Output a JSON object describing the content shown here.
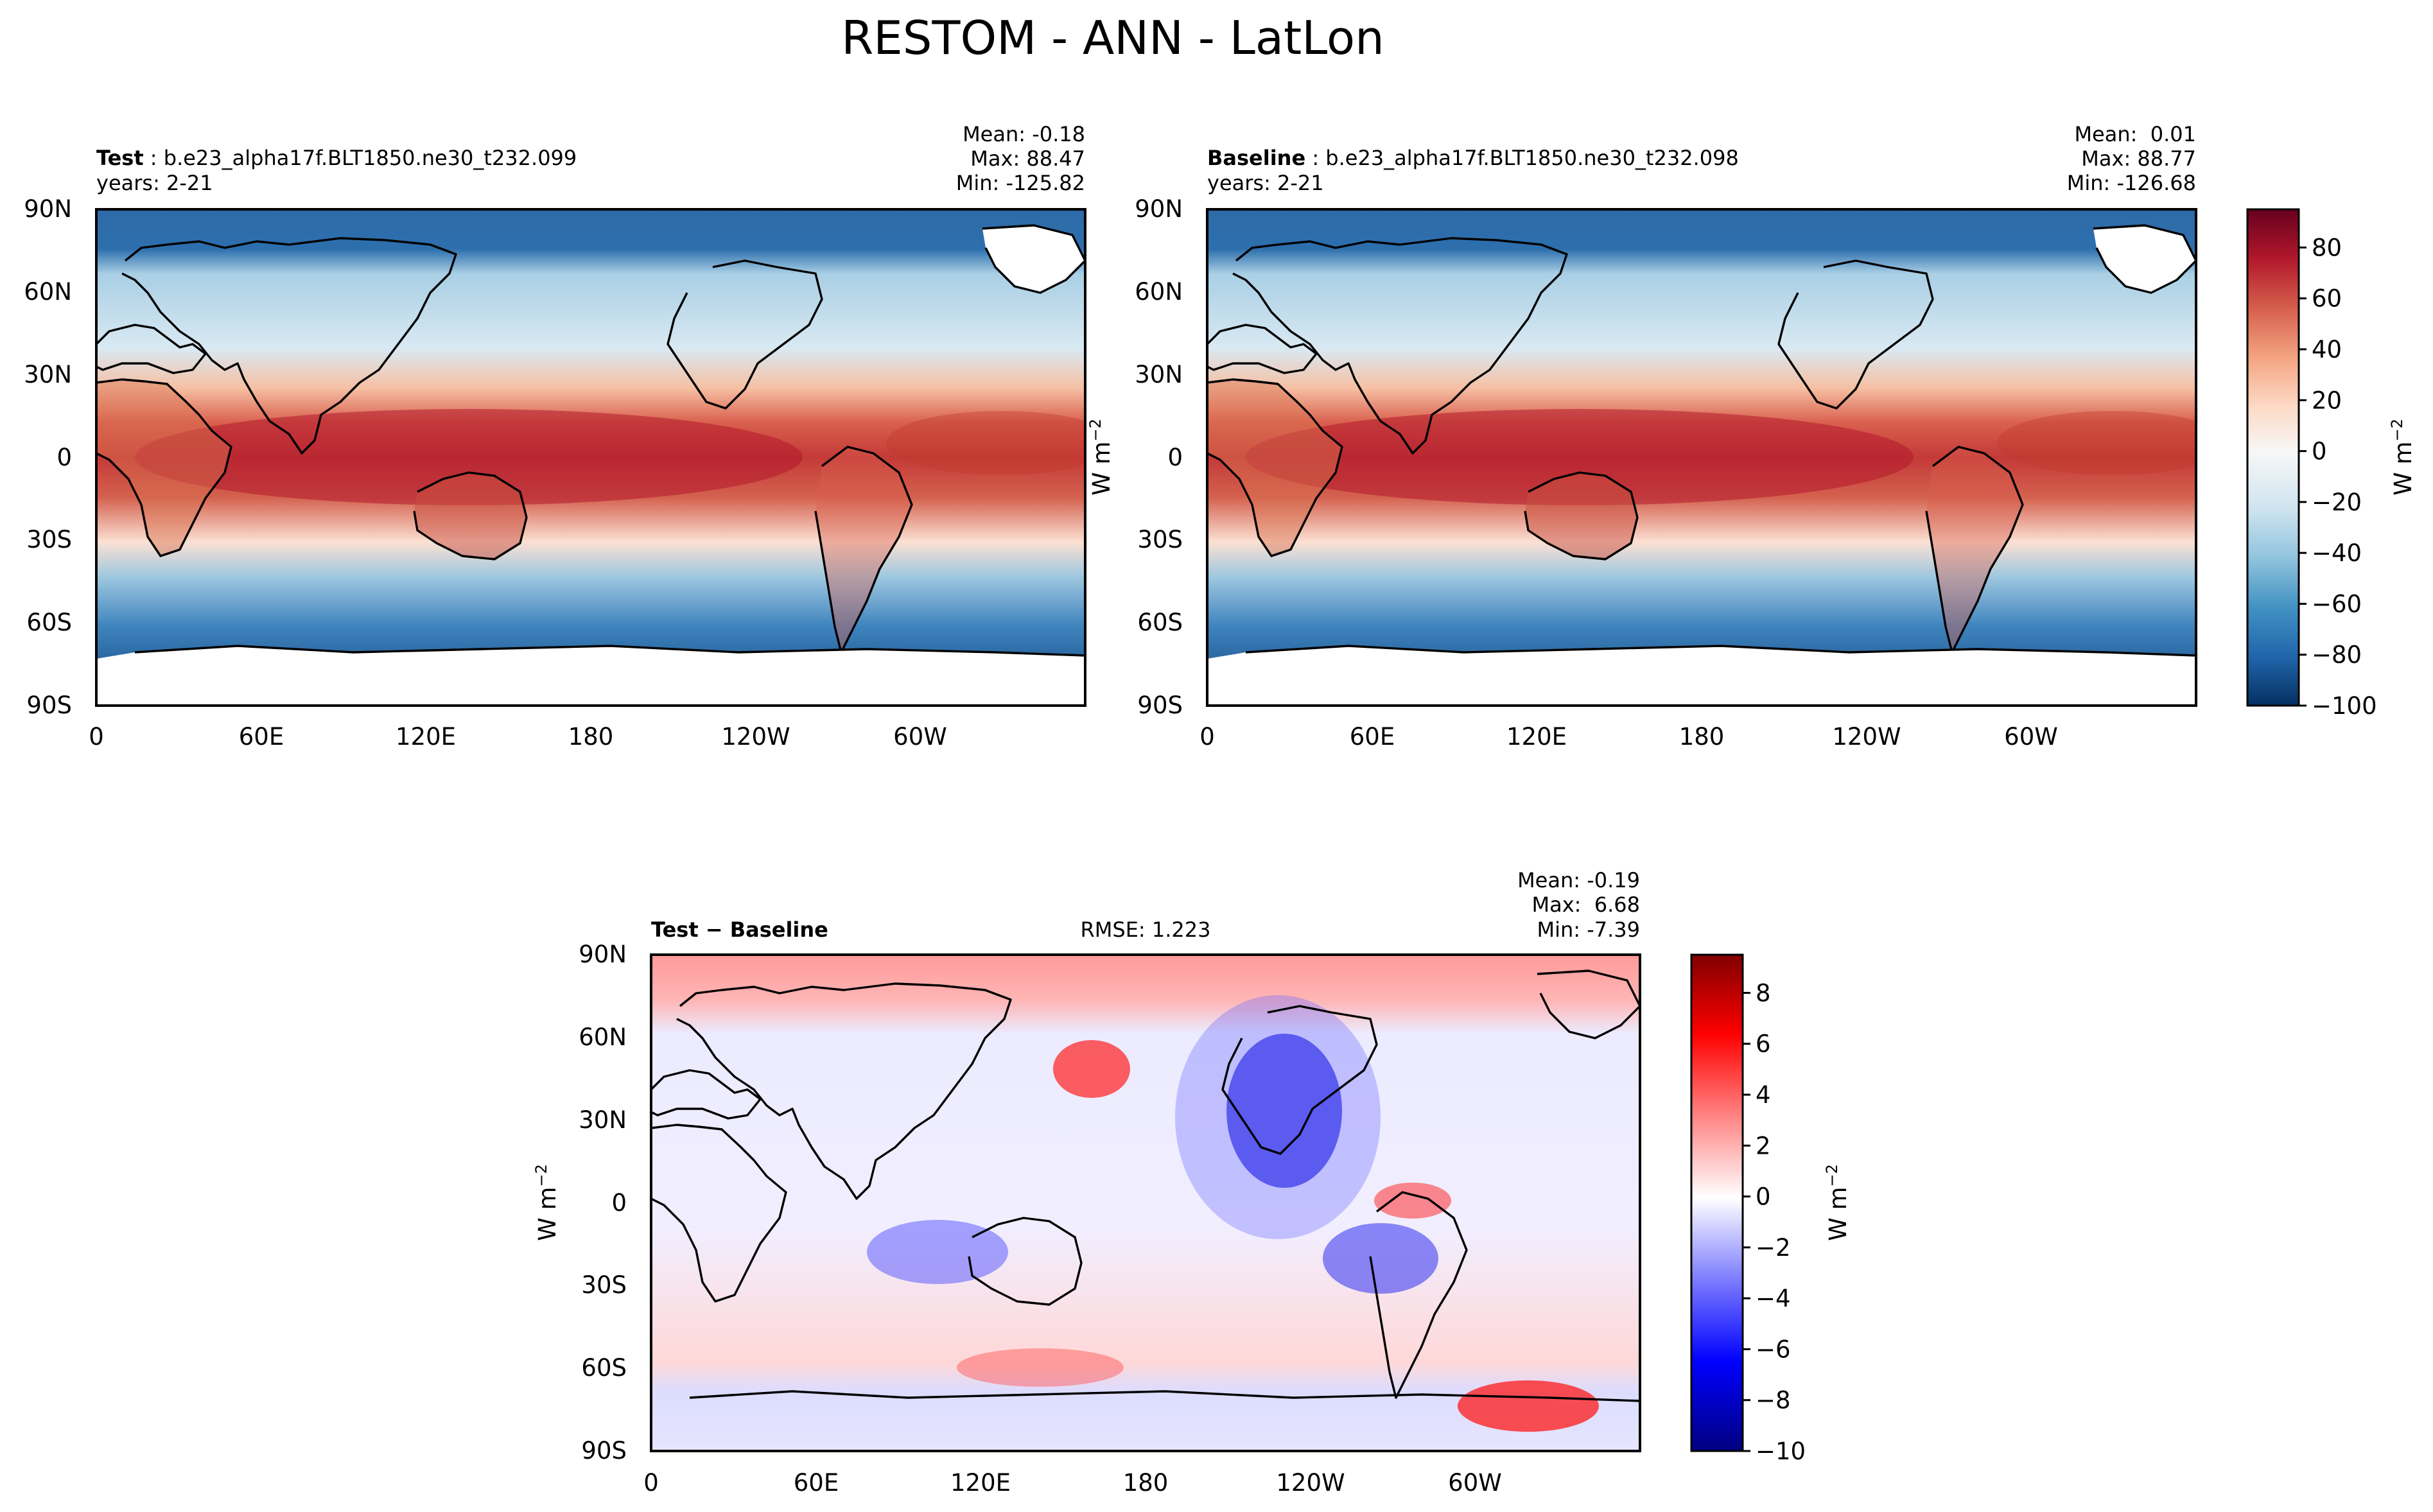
{
  "figure": {
    "title": "RESTOM - ANN - LatLon"
  },
  "chart_data": [
    {
      "type": "heatmap",
      "panel": "test",
      "label_bold": "Test",
      "label_rest": "b.e23_alpha17f.BLT1850.ne30_t232.099",
      "years": "years: 2-21",
      "stats": [
        "Mean: -0.18",
        "Max: 88.47",
        "Min: -125.82"
      ],
      "mean": -0.18,
      "max": 88.47,
      "min": -125.82,
      "xticks": [
        "0",
        "60E",
        "120E",
        "180",
        "120W",
        "60W"
      ],
      "yticks": [
        "90N",
        "60N",
        "30N",
        "0",
        "30S",
        "60S",
        "90S"
      ],
      "ylabel": "W m",
      "ylabel_sup": "−2",
      "colormap": "RdBu_r",
      "value_range": [
        -100,
        95
      ]
    },
    {
      "type": "heatmap",
      "panel": "baseline",
      "label_bold": "Baseline",
      "label_rest": "b.e23_alpha17f.BLT1850.ne30_t232.098",
      "years": "years: 2-21",
      "stats": [
        "Mean:  0.01",
        "Max: 88.77",
        "Min: -126.68"
      ],
      "mean": 0.01,
      "max": 88.77,
      "min": -126.68,
      "xticks": [
        "0",
        "60E",
        "120E",
        "180",
        "120W",
        "60W"
      ],
      "yticks": [
        "90N",
        "60N",
        "30N",
        "0",
        "30S",
        "60S",
        "90S"
      ],
      "colorbar": {
        "ticks": [
          "80",
          "60",
          "40",
          "20",
          "0",
          "−20",
          "−40",
          "−60",
          "−80",
          "−100"
        ],
        "label": "W m",
        "label_sup": "−2",
        "range": [
          -100,
          95
        ],
        "colors": [
          "#053061",
          "#2166ac",
          "#4393c3",
          "#92c5de",
          "#d1e5f0",
          "#f7f7f7",
          "#fddbc7",
          "#f4a582",
          "#d6604d",
          "#b2182b",
          "#67001f"
        ]
      }
    },
    {
      "type": "heatmap",
      "panel": "difference",
      "label_bold": "Test − Baseline",
      "rmse": "RMSE: 1.223",
      "stats": [
        "Mean: -0.19",
        "Max:  6.68",
        "Min: -7.39"
      ],
      "mean": -0.19,
      "max": 6.68,
      "min": -7.39,
      "rmse_value": 1.223,
      "xticks": [
        "0",
        "60E",
        "120E",
        "180",
        "120W",
        "60W"
      ],
      "yticks": [
        "90N",
        "60N",
        "30N",
        "0",
        "30S",
        "60S",
        "90S"
      ],
      "ylabel": "W m",
      "ylabel_sup": "−2",
      "colorbar": {
        "ticks": [
          "8",
          "6",
          "4",
          "2",
          "0",
          "−2",
          "−4",
          "−6",
          "−8",
          "−10"
        ],
        "label": "W m",
        "label_sup": "−2",
        "range": [
          -10,
          9.5
        ],
        "colors": [
          "#000080",
          "#0000ff",
          "#8080ff",
          "#ffffff",
          "#ff8080",
          "#ff0000",
          "#800000"
        ]
      }
    }
  ]
}
